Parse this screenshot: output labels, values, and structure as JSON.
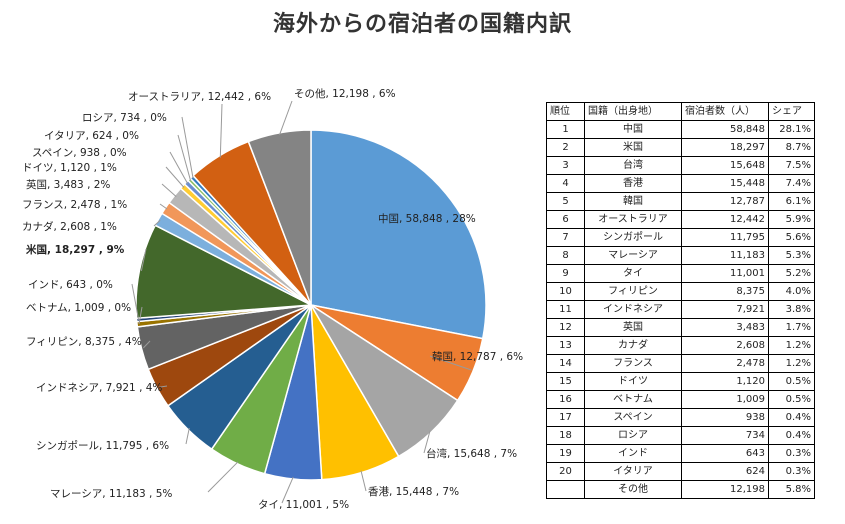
{
  "title": "海外からの宿泊者の国籍内訳",
  "chart_data": {
    "type": "pie",
    "title": "海外からの宿泊者の国籍内訳",
    "slices": [
      {
        "label": "中国",
        "value": 58848,
        "percent": "28%",
        "color": "#5b9bd5"
      },
      {
        "label": "韓国",
        "value": 12787,
        "percent": "6%",
        "color": "#ed7d31"
      },
      {
        "label": "台湾",
        "value": 15648,
        "percent": "7%",
        "color": "#a5a5a5"
      },
      {
        "label": "香港",
        "value": 15448,
        "percent": "7%",
        "color": "#ffc000"
      },
      {
        "label": "タイ",
        "value": 11001,
        "percent": "5%",
        "color": "#4472c4"
      },
      {
        "label": "マレーシア",
        "value": 11183,
        "percent": "5%",
        "color": "#70ad47"
      },
      {
        "label": "シンガポール",
        "value": 11795,
        "percent": "6%",
        "color": "#255e91"
      },
      {
        "label": "インドネシア",
        "value": 7921,
        "percent": "4%",
        "color": "#9e480e"
      },
      {
        "label": "フィリピン",
        "value": 8375,
        "percent": "4%",
        "color": "#636363"
      },
      {
        "label": "ベトナム",
        "value": 1009,
        "percent": "0%",
        "color": "#997300"
      },
      {
        "label": "インド",
        "value": 643,
        "percent": "0%",
        "color": "#264478"
      },
      {
        "label": "米国",
        "value": 18297,
        "percent": "9%",
        "color": "#43682b"
      },
      {
        "label": "カナダ",
        "value": 2608,
        "percent": "1%",
        "color": "#7cafdd"
      },
      {
        "label": "フランス",
        "value": 2478,
        "percent": "1%",
        "color": "#f1975a"
      },
      {
        "label": "英国",
        "value": 3483,
        "percent": "2%",
        "color": "#b7b7b7"
      },
      {
        "label": "ドイツ",
        "value": 1120,
        "percent": "1%",
        "color": "#ffcd33"
      },
      {
        "label": "スペイン",
        "value": 938,
        "percent": "0%",
        "color": "#698ed0"
      },
      {
        "label": "イタリア",
        "value": 624,
        "percent": "0%",
        "color": "#8cc168"
      },
      {
        "label": "ロシア",
        "value": 734,
        "percent": "0%",
        "color": "#327dc2"
      },
      {
        "label": "オーストラリア",
        "value": 12442,
        "percent": "6%",
        "color": "#d26012"
      },
      {
        "label": "その他",
        "value": 12198,
        "percent": "6%",
        "color": "#848484"
      }
    ]
  },
  "table": {
    "headers": [
      "順位",
      "国籍（出身地）",
      "宿泊者数（人）",
      "シェア"
    ],
    "rows": [
      [
        "1",
        "中国",
        "58,848",
        "28.1%"
      ],
      [
        "2",
        "米国",
        "18,297",
        "8.7%"
      ],
      [
        "3",
        "台湾",
        "15,648",
        "7.5%"
      ],
      [
        "4",
        "香港",
        "15,448",
        "7.4%"
      ],
      [
        "5",
        "韓国",
        "12,787",
        "6.1%"
      ],
      [
        "6",
        "オーストラリア",
        "12,442",
        "5.9%"
      ],
      [
        "7",
        "シンガポール",
        "11,795",
        "5.6%"
      ],
      [
        "8",
        "マレーシア",
        "11,183",
        "5.3%"
      ],
      [
        "9",
        "タイ",
        "11,001",
        "5.2%"
      ],
      [
        "10",
        "フィリピン",
        "8,375",
        "4.0%"
      ],
      [
        "11",
        "インドネシア",
        "7,921",
        "3.8%"
      ],
      [
        "12",
        "英国",
        "3,483",
        "1.7%"
      ],
      [
        "13",
        "カナダ",
        "2,608",
        "1.2%"
      ],
      [
        "14",
        "フランス",
        "2,478",
        "1.2%"
      ],
      [
        "15",
        "ドイツ",
        "1,120",
        "0.5%"
      ],
      [
        "16",
        "ベトナム",
        "1,009",
        "0.5%"
      ],
      [
        "17",
        "スペイン",
        "938",
        "0.4%"
      ],
      [
        "18",
        "ロシア",
        "734",
        "0.4%"
      ],
      [
        "19",
        "インド",
        "643",
        "0.3%"
      ],
      [
        "20",
        "イタリア",
        "624",
        "0.3%"
      ],
      [
        "",
        "その他",
        "12,198",
        "5.8%"
      ]
    ]
  }
}
